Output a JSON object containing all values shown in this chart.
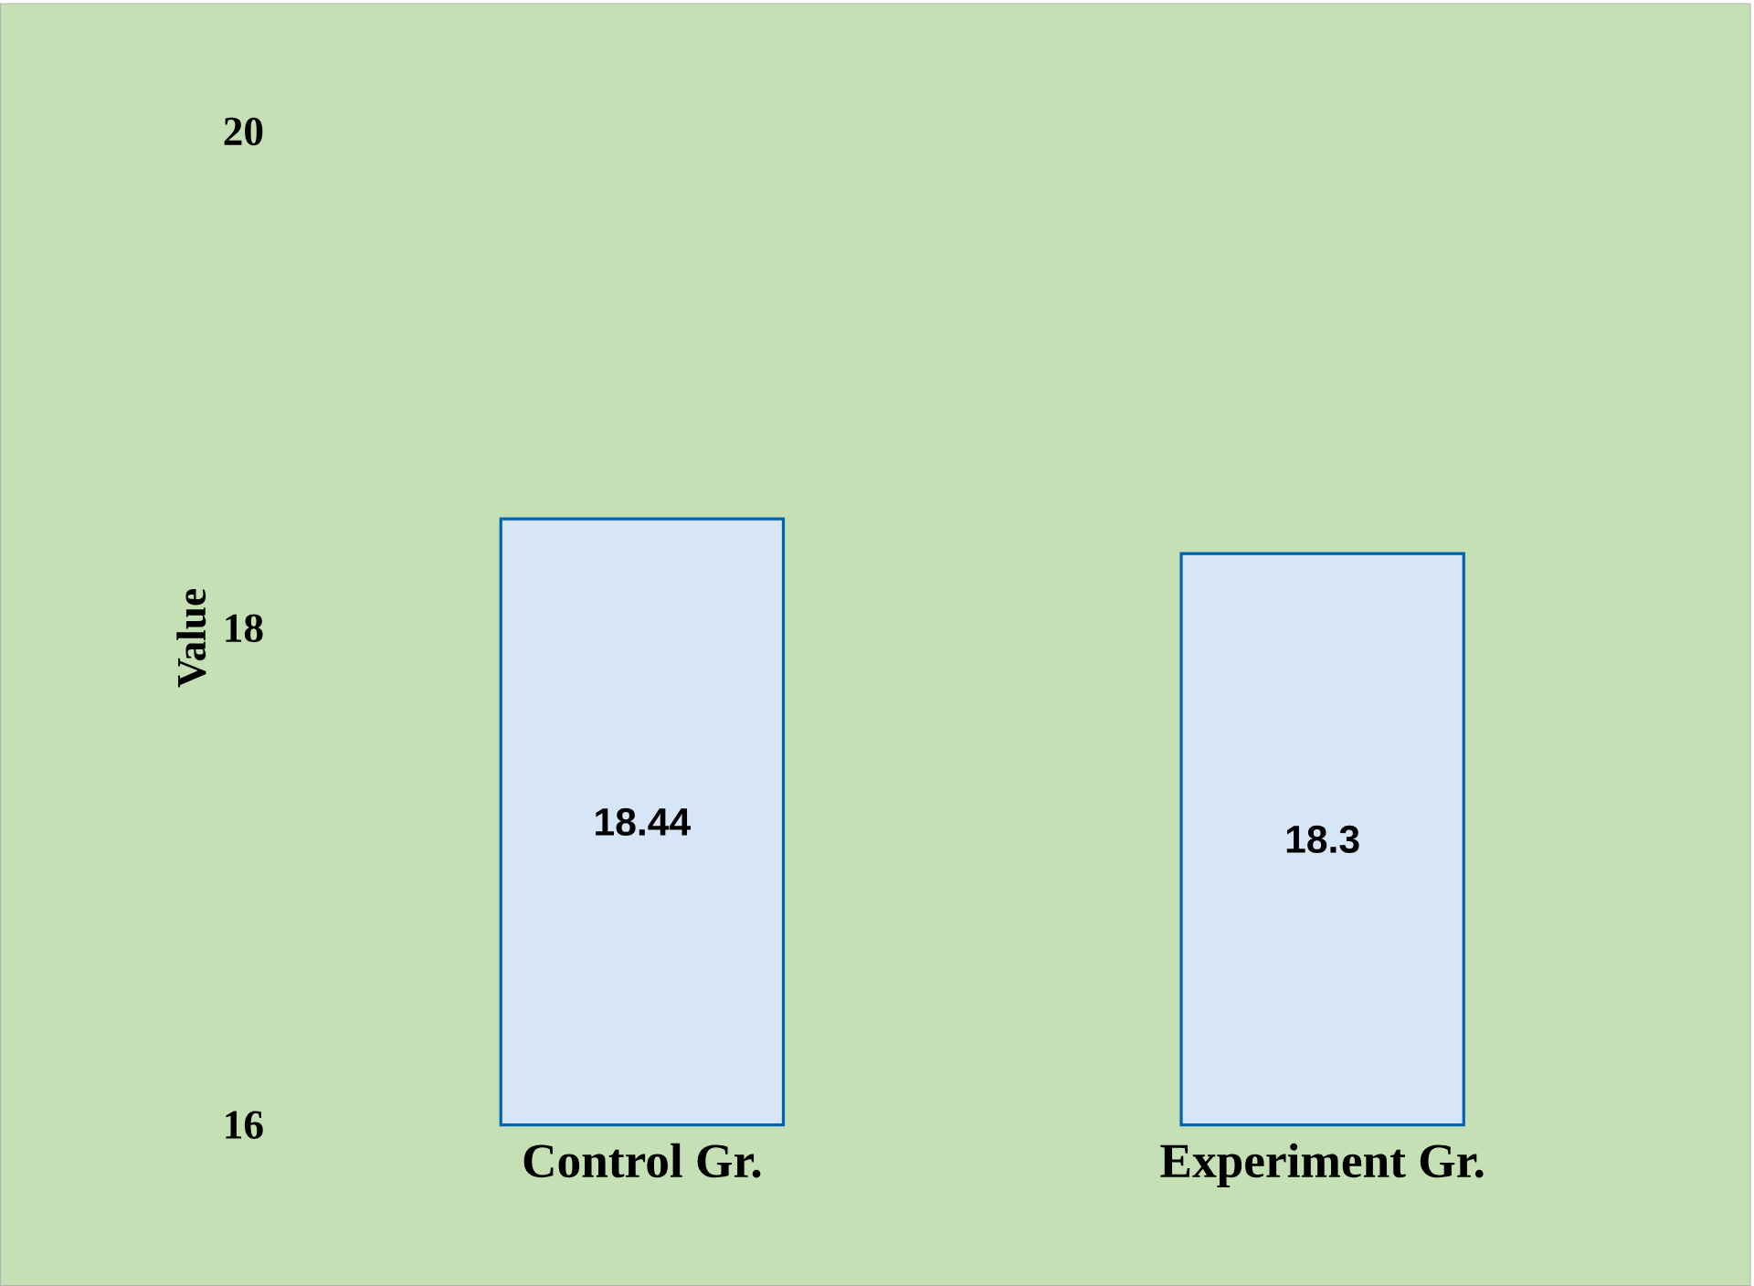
{
  "chart_data": {
    "type": "bar",
    "ylabel": "Value",
    "categories": [
      "Control Gr.",
      "Experiment Gr."
    ],
    "values": [
      18.44,
      18.3
    ],
    "color": "#d6e6f7",
    "ylim": [
      16,
      20
    ],
    "yticks": [
      16,
      18,
      20
    ],
    "data_labels": true
  }
}
